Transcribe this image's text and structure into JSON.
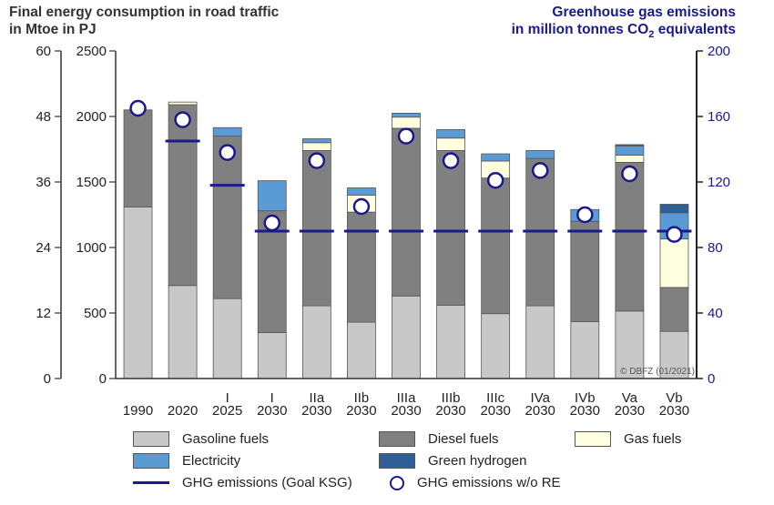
{
  "titles": {
    "left_line1": "Final energy consumption in road traffic",
    "left_line2": "in Mtoe  in PJ",
    "right_line1": "Greenhouse gas emissions",
    "right_line2_prefix": "in million tonnes CO",
    "right_line2_sub": "2",
    "right_line2_suffix": " equivalents"
  },
  "copyright": "© DBFZ (01/2021)",
  "colors": {
    "gasoline": "#c8c8c8",
    "diesel": "#808080",
    "gas": "#ffffe0",
    "electricity": "#5b9bd5",
    "hydrogen": "#2e6096",
    "ghg": "#1a1a8c"
  },
  "chart_data": {
    "type": "bar",
    "stacked": true,
    "categories": [
      {
        "line1": "1990",
        "line2": ""
      },
      {
        "line1": "2020",
        "line2": ""
      },
      {
        "line1": "I",
        "line2": "2025"
      },
      {
        "line1": "I",
        "line2": "2030"
      },
      {
        "line1": "IIa",
        "line2": "2030"
      },
      {
        "line1": "IIb",
        "line2": "2030"
      },
      {
        "line1": "IIIa",
        "line2": "2030"
      },
      {
        "line1": "IIIb",
        "line2": "2030"
      },
      {
        "line1": "IIIc",
        "line2": "2030"
      },
      {
        "line1": "IVa",
        "line2": "2030"
      },
      {
        "line1": "IVb",
        "line2": "2030"
      },
      {
        "line1": "Va",
        "line2": "2030"
      },
      {
        "line1": "Vb",
        "line2": "2030"
      }
    ],
    "series": [
      {
        "name": "Gasoline fuels",
        "key": "gasoline",
        "values": [
          1310,
          710,
          610,
          350,
          555,
          430,
          630,
          560,
          495,
          555,
          435,
          515,
          360
        ]
      },
      {
        "name": "Diesel fuels",
        "key": "diesel",
        "values": [
          740,
          1380,
          1240,
          930,
          1185,
          840,
          1280,
          1180,
          1035,
          1125,
          765,
          1135,
          335
        ]
      },
      {
        "name": "Gas fuels",
        "key": "gas",
        "values": [
          0,
          20,
          0,
          0,
          60,
          130,
          85,
          95,
          130,
          0,
          0,
          55,
          370
        ]
      },
      {
        "name": "Electricity",
        "key": "electricity",
        "values": [
          0,
          0,
          65,
          230,
          30,
          55,
          30,
          65,
          55,
          60,
          90,
          70,
          200
        ]
      },
      {
        "name": "Green hydrogen",
        "key": "hydrogen",
        "values": [
          0,
          0,
          0,
          0,
          0,
          0,
          0,
          0,
          0,
          0,
          0,
          10,
          65
        ]
      }
    ],
    "ghg_goal_ksg": [
      null,
      145,
      118,
      90,
      90,
      90,
      90,
      90,
      90,
      90,
      90,
      90,
      90
    ],
    "ghg_without_re": [
      165,
      158,
      138,
      95,
      133,
      105,
      148,
      133,
      121,
      127,
      100,
      125,
      88
    ],
    "ghg_goal_name": "GHG emissions (Goal KSG)",
    "ghg_without_re_name": "GHG emissions w/o RE",
    "left_axis_mtoe": {
      "ticks": [
        0,
        12,
        24,
        36,
        48,
        60
      ]
    },
    "left_axis_pj": {
      "ticks": [
        0,
        500,
        1000,
        1500,
        2000,
        2500
      ],
      "ylim": [
        0,
        2500
      ]
    },
    "right_axis": {
      "ticks": [
        0,
        40,
        80,
        120,
        160,
        200
      ],
      "ylim": [
        0,
        200
      ]
    },
    "grid": false
  },
  "legend": [
    {
      "label": "Gasoline fuels",
      "kind": "swatch",
      "key": "gasoline"
    },
    {
      "label": "Diesel fuels",
      "kind": "swatch",
      "key": "diesel"
    },
    {
      "label": "Gas fuels",
      "kind": "swatch",
      "key": "gas"
    },
    {
      "label": "Electricity",
      "kind": "swatch",
      "key": "electricity"
    },
    {
      "label": "Green hydrogen",
      "kind": "swatch",
      "key": "hydrogen"
    },
    {
      "label": "GHG emissions (Goal KSG)",
      "kind": "line",
      "key": "ghg"
    },
    {
      "label": "GHG emissions w/o RE",
      "kind": "circle",
      "key": "ghg"
    }
  ]
}
